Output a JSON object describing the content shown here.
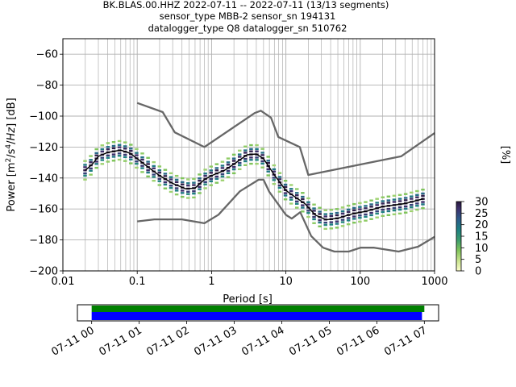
{
  "chart_data": {
    "type": "ppsd",
    "title_lines": [
      "BK.BLAS.00.HHZ   2022-07-11 -- 2022-07-11  (13/13 segments)",
      "sensor_type MBB-2 sensor_sn 194131",
      "datalogger_type Q8 datalogger_sn 510762"
    ],
    "xlabel": "Period [s]",
    "ylabel": "Power [m²/s⁴/Hz] [dB]",
    "xscale": "log",
    "xlim": [
      0.01,
      1000
    ],
    "ylim": [
      -200,
      -50
    ],
    "x_ticks": [
      {
        "v": 0.01,
        "label": "0.01"
      },
      {
        "v": 0.1,
        "label": "0.1"
      },
      {
        "v": 1,
        "label": "1"
      },
      {
        "v": 10,
        "label": "10"
      },
      {
        "v": 100,
        "label": "100"
      },
      {
        "v": 1000,
        "label": "1000"
      }
    ],
    "y_ticks": [
      {
        "v": -60,
        "label": "−60"
      },
      {
        "v": -80,
        "label": "−80"
      },
      {
        "v": -100,
        "label": "−100"
      },
      {
        "v": -120,
        "label": "−120"
      },
      {
        "v": -140,
        "label": "−140"
      },
      {
        "v": -160,
        "label": "−160"
      },
      {
        "v": -180,
        "label": "−180"
      },
      {
        "v": -200,
        "label": "−200"
      }
    ],
    "grid": true,
    "nhnm": [
      [
        0.1,
        -91.5
      ],
      [
        0.22,
        -97.4
      ],
      [
        0.32,
        -110.5
      ],
      [
        0.8,
        -120
      ],
      [
        3.8,
        -98
      ],
      [
        4.6,
        -96.5
      ],
      [
        6.3,
        -101
      ],
      [
        7.9,
        -113.5
      ],
      [
        15.4,
        -120
      ],
      [
        20,
        -138
      ],
      [
        354.8,
        -126
      ],
      [
        1000,
        -111
      ]
    ],
    "nlnm": [
      [
        0.1,
        -168
      ],
      [
        0.17,
        -166.7
      ],
      [
        0.4,
        -166.7
      ],
      [
        0.8,
        -169.2
      ],
      [
        1.24,
        -163.7
      ],
      [
        2.4,
        -148.6
      ],
      [
        4.3,
        -141.1
      ],
      [
        5,
        -141.1
      ],
      [
        6,
        -149
      ],
      [
        10,
        -163.8
      ],
      [
        12,
        -166.2
      ],
      [
        15.6,
        -162.1
      ],
      [
        21.9,
        -177.5
      ],
      [
        31.6,
        -185
      ],
      [
        45,
        -187.5
      ],
      [
        70,
        -187.5
      ],
      [
        101,
        -185
      ],
      [
        154,
        -185
      ],
      [
        328,
        -187.5
      ],
      [
        600,
        -184.4
      ],
      [
        1000,
        -178
      ]
    ],
    "mean": [
      [
        0.02,
        -135
      ],
      [
        0.025,
        -131
      ],
      [
        0.03,
        -126
      ],
      [
        0.04,
        -123.5
      ],
      [
        0.06,
        -122
      ],
      [
        0.08,
        -124
      ],
      [
        0.1,
        -127.5
      ],
      [
        0.15,
        -134
      ],
      [
        0.2,
        -138.5
      ],
      [
        0.3,
        -143.5
      ],
      [
        0.45,
        -147
      ],
      [
        0.6,
        -146.5
      ],
      [
        0.8,
        -141
      ],
      [
        1,
        -138.5
      ],
      [
        1.5,
        -135
      ],
      [
        2,
        -131
      ],
      [
        3,
        -125
      ],
      [
        4,
        -124.5
      ],
      [
        5,
        -127.5
      ],
      [
        7,
        -138
      ],
      [
        10,
        -148
      ],
      [
        14,
        -153
      ],
      [
        18,
        -156.5
      ],
      [
        25,
        -164
      ],
      [
        35,
        -167
      ],
      [
        50,
        -166
      ],
      [
        80,
        -163
      ],
      [
        120,
        -161.5
      ],
      [
        200,
        -158.5
      ],
      [
        400,
        -156.5
      ],
      [
        700,
        -153.5
      ]
    ],
    "pdf_rows": [
      {
        "dy": 3.5,
        "pct": 20
      },
      {
        "dy": 2,
        "pct": 28
      },
      {
        "dy": 0,
        "pct": 30
      },
      {
        "dy": -2,
        "pct": 26
      },
      {
        "dy": -3.5,
        "pct": 18
      },
      {
        "dy": 6,
        "pct": 8
      },
      {
        "dy": -6,
        "pct": 8
      }
    ],
    "colorbar": {
      "label": "[%]",
      "range": [
        0,
        30
      ],
      "ticks": [
        {
          "v": 0,
          "label": "0"
        },
        {
          "v": 5,
          "label": "5"
        },
        {
          "v": 10,
          "label": "10"
        },
        {
          "v": 15,
          "label": "15"
        },
        {
          "v": 20,
          "label": "20"
        },
        {
          "v": 25,
          "label": "25"
        },
        {
          "v": 30,
          "label": "30"
        }
      ]
    },
    "timeline": {
      "range_hours": [
        -0.3,
        7.3
      ],
      "green_bar_hours": [
        0,
        7
      ],
      "blue_bar_hours": [
        0,
        6.95
      ],
      "ticks": [
        {
          "h": 0,
          "label": "07-11 00"
        },
        {
          "h": 1,
          "label": "07-11 01"
        },
        {
          "h": 2,
          "label": "07-11 02"
        },
        {
          "h": 3,
          "label": "07-11 03"
        },
        {
          "h": 4,
          "label": "07-11 04"
        },
        {
          "h": 5,
          "label": "07-11 05"
        },
        {
          "h": 6,
          "label": "07-11 06"
        },
        {
          "h": 7,
          "label": "07-11 07"
        }
      ]
    },
    "colors": {
      "model_line": "#676767",
      "mean_line": "#000000",
      "grid": "#b0b0b0",
      "green_bar": "#008000",
      "blue_bar": "#0000ff"
    }
  }
}
